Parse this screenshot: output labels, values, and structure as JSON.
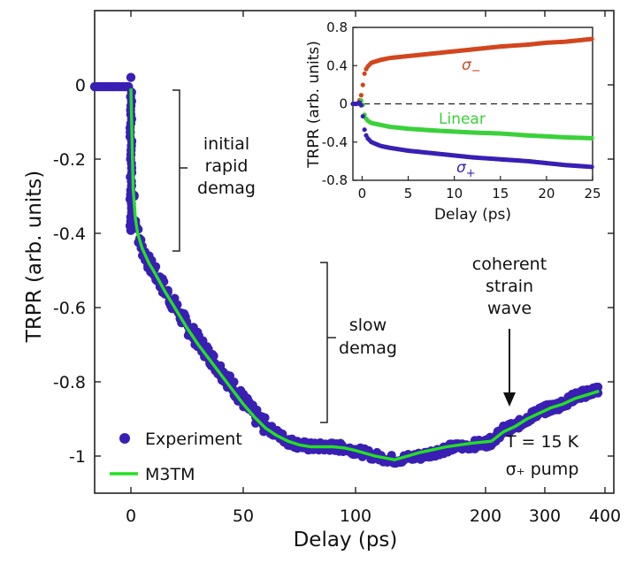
{
  "chart_data": [
    {
      "type": "scatter",
      "xlabel": "Delay (ps)",
      "ylabel": "TRPR (arb. units)",
      "x_tick_labels": [
        "0",
        "50",
        "100",
        "200",
        "300",
        "400"
      ],
      "y_tick_labels": [
        "0",
        "-0.2",
        "-0.4",
        "-0.6",
        "-0.8",
        "-1"
      ],
      "ylim": [
        -1.1,
        0.2
      ],
      "x_axis_note": "piecewise axis: linear 0-100 ps, compressed 100-400 ps",
      "series": [
        {
          "name": "Experiment",
          "color": "#3a1fb4",
          "x": [
            -15,
            -10,
            -5,
            -1,
            0,
            0.5,
            1,
            1.5,
            2,
            3,
            5,
            8,
            10,
            15,
            20,
            25,
            30,
            35,
            40,
            45,
            50,
            55,
            60,
            65,
            70,
            75,
            80,
            85,
            90,
            95,
            100,
            115,
            130,
            150,
            170,
            190,
            210,
            230,
            250,
            270,
            290,
            310,
            330,
            350,
            370,
            390
          ],
          "y": [
            -0.005,
            -0.005,
            -0.005,
            -0.005,
            0.02,
            -0.1,
            -0.2,
            -0.3,
            -0.35,
            -0.4,
            -0.44,
            -0.48,
            -0.5,
            -0.55,
            -0.6,
            -0.65,
            -0.69,
            -0.73,
            -0.77,
            -0.81,
            -0.85,
            -0.89,
            -0.92,
            -0.94,
            -0.96,
            -0.97,
            -0.975,
            -0.975,
            -0.975,
            -0.978,
            -0.985,
            -1.0,
            -1.01,
            -1.0,
            -0.98,
            -0.97,
            -0.96,
            -0.93,
            -0.92,
            -0.9,
            -0.88,
            -0.87,
            -0.86,
            -0.84,
            -0.83,
            -0.82
          ]
        },
        {
          "name": "M3TM",
          "color": "#22e022",
          "x": [
            0,
            0.5,
            1,
            2,
            3,
            5,
            8,
            10,
            15,
            20,
            25,
            30,
            35,
            40,
            45,
            50,
            55,
            60,
            65,
            70,
            75,
            80,
            85,
            90,
            95,
            100,
            115,
            130,
            150,
            170,
            190,
            210,
            230,
            250,
            270,
            290,
            310,
            330,
            350,
            370,
            390
          ],
          "y": [
            -0.01,
            -0.15,
            -0.28,
            -0.36,
            -0.4,
            -0.44,
            -0.48,
            -0.5,
            -0.555,
            -0.605,
            -0.655,
            -0.7,
            -0.74,
            -0.78,
            -0.82,
            -0.86,
            -0.895,
            -0.925,
            -0.945,
            -0.96,
            -0.97,
            -0.975,
            -0.975,
            -0.975,
            -0.978,
            -0.985,
            -1.0,
            -1.01,
            -0.99,
            -0.975,
            -0.965,
            -0.96,
            -0.935,
            -0.92,
            -0.9,
            -0.885,
            -0.87,
            -0.86,
            -0.845,
            -0.835,
            -0.825
          ]
        }
      ],
      "legend": [
        "Experiment",
        "M3TM"
      ],
      "legend_position": "bottom-left",
      "annotations": [
        [
          "initial",
          "rapid",
          "demag"
        ],
        [
          "slow",
          "demag"
        ],
        [
          "coherent",
          "strain",
          "wave"
        ],
        [
          "T = 15 K"
        ],
        [
          "σ₊ pump"
        ]
      ]
    },
    {
      "type": "scatter",
      "xlabel": "Delay (ps)",
      "ylabel": "TRPR (arb. units)",
      "xlim": [
        -1,
        25
      ],
      "ylim": [
        -0.8,
        0.8
      ],
      "x_ticks": [
        0,
        5,
        10,
        15,
        20,
        25
      ],
      "y_ticks": [
        0.8,
        0.4,
        0,
        -0.4,
        -0.8
      ],
      "x_tick_labels": [
        "0",
        "5",
        "10",
        "15",
        "20",
        "25"
      ],
      "y_tick_labels": [
        "0.8",
        "0.4",
        "0",
        "-0.4",
        "-0.8"
      ],
      "series": [
        {
          "name": "σ−",
          "color": "#d2461e",
          "x": [
            -1,
            -0.5,
            -0.2,
            0,
            0.2,
            0.5,
            1,
            2,
            3,
            5,
            8,
            10,
            12,
            15,
            18,
            20,
            22,
            25
          ],
          "y": [
            0.0,
            0.0,
            0.05,
            0.13,
            0.3,
            0.38,
            0.43,
            0.46,
            0.48,
            0.5,
            0.53,
            0.55,
            0.57,
            0.6,
            0.62,
            0.64,
            0.65,
            0.68
          ]
        },
        {
          "name": "Linear",
          "color": "#3ad13a",
          "x": [
            -1,
            -0.5,
            -0.2,
            0,
            0.2,
            0.5,
            1,
            2,
            3,
            5,
            8,
            10,
            12,
            15,
            18,
            20,
            22,
            25
          ],
          "y": [
            0.0,
            0.0,
            0.02,
            0.05,
            -0.1,
            -0.17,
            -0.2,
            -0.22,
            -0.24,
            -0.26,
            -0.28,
            -0.29,
            -0.3,
            -0.31,
            -0.33,
            -0.34,
            -0.35,
            -0.36
          ]
        },
        {
          "name": "σ+",
          "color": "#3a1fb4",
          "x": [
            -1,
            -0.5,
            -0.2,
            0,
            0.2,
            0.5,
            1,
            2,
            3,
            5,
            8,
            10,
            12,
            15,
            18,
            20,
            22,
            25
          ],
          "y": [
            0.0,
            0.0,
            0.02,
            -0.05,
            -0.25,
            -0.35,
            -0.4,
            -0.44,
            -0.46,
            -0.49,
            -0.52,
            -0.54,
            -0.56,
            -0.58,
            -0.6,
            -0.62,
            -0.64,
            -0.66
          ]
        }
      ],
      "series_labels": [
        {
          "base": "σ",
          "sub": "−"
        },
        {
          "base": "Linear",
          "sub": ""
        },
        {
          "base": "σ",
          "sub": "+"
        }
      ]
    }
  ]
}
